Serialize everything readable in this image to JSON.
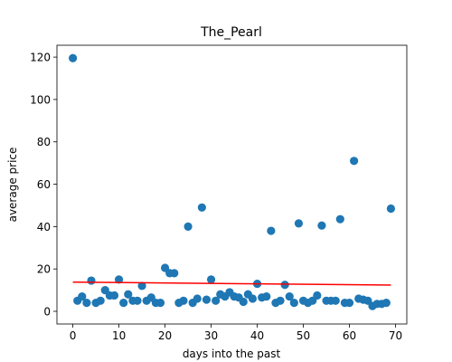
{
  "colors": {
    "points": "#1f77b4",
    "trend": "#ff0000",
    "axis": "#000000"
  },
  "chart_data": {
    "type": "scatter",
    "title": "The_Pearl",
    "xlabel": "days into the past",
    "ylabel": "average price",
    "xlim": [
      -3.45,
      72.45
    ],
    "ylim": [
      -5.98,
      125.6
    ],
    "xticks": [
      0,
      10,
      20,
      30,
      40,
      50,
      60,
      70
    ],
    "yticks": [
      0,
      20,
      40,
      60,
      80,
      100,
      120
    ],
    "grid": false,
    "legend": "none",
    "series": [
      {
        "points": [
          [
            0,
            119.5
          ],
          [
            1,
            5
          ],
          [
            2,
            7
          ],
          [
            3,
            4
          ],
          [
            4,
            14.5
          ],
          [
            5,
            4
          ],
          [
            6,
            5
          ],
          [
            7,
            10
          ],
          [
            8,
            7.5
          ],
          [
            9,
            7.5
          ],
          [
            10,
            15
          ],
          [
            11,
            4
          ],
          [
            12,
            8
          ],
          [
            13,
            5
          ],
          [
            14,
            5
          ],
          [
            15,
            12
          ],
          [
            16,
            5
          ],
          [
            17,
            6.5
          ],
          [
            18,
            4
          ],
          [
            19,
            4
          ],
          [
            20,
            20.5
          ],
          [
            21,
            18
          ],
          [
            22,
            18
          ],
          [
            23,
            4
          ],
          [
            24,
            5
          ],
          [
            25,
            40
          ],
          [
            26,
            4
          ],
          [
            27,
            6
          ],
          [
            28,
            49
          ],
          [
            29,
            5.5
          ],
          [
            30,
            15
          ],
          [
            31,
            5
          ],
          [
            32,
            8
          ],
          [
            33,
            7
          ],
          [
            34,
            9
          ],
          [
            35,
            7
          ],
          [
            36,
            6.5
          ],
          [
            37,
            4.5
          ],
          [
            38,
            8
          ],
          [
            39,
            6
          ],
          [
            40,
            13
          ],
          [
            41,
            6.5
          ],
          [
            42,
            7
          ],
          [
            43,
            38
          ],
          [
            44,
            4
          ],
          [
            45,
            5
          ],
          [
            46,
            12.5
          ],
          [
            47,
            7
          ],
          [
            48,
            4
          ],
          [
            49,
            41.5
          ],
          [
            50,
            5
          ],
          [
            51,
            4
          ],
          [
            52,
            5
          ],
          [
            53,
            7.5
          ],
          [
            54,
            40.5
          ],
          [
            55,
            5
          ],
          [
            56,
            5
          ],
          [
            57,
            5
          ],
          [
            58,
            43.5
          ],
          [
            59,
            4
          ],
          [
            60,
            4
          ],
          [
            61,
            71
          ],
          [
            62,
            6
          ],
          [
            63,
            5.5
          ],
          [
            64,
            5
          ],
          [
            65,
            2.5
          ],
          [
            66,
            3.5
          ],
          [
            67,
            3.5
          ],
          [
            68,
            4
          ],
          [
            69,
            48.5
          ]
        ]
      }
    ],
    "trendline": {
      "x": [
        0,
        69
      ],
      "y": [
        13.8,
        12.4
      ]
    }
  }
}
